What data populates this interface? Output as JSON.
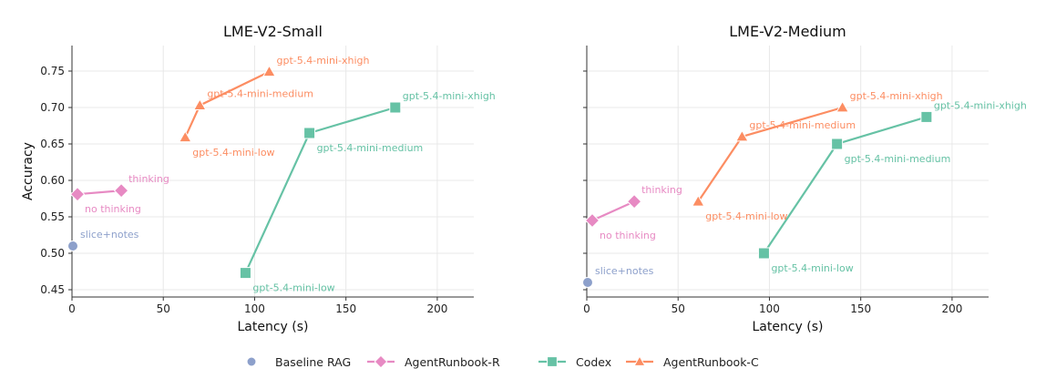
{
  "chart_data": [
    {
      "type": "line",
      "title": "LME-V2-Small",
      "xlabel": "Latency (s)",
      "ylabel": "Accuracy",
      "xlim": [
        0,
        220
      ],
      "ylim": [
        0.44,
        0.785
      ],
      "xticks": [
        0,
        50,
        100,
        150,
        200
      ],
      "yticks": [
        0.45,
        0.5,
        0.55,
        0.6,
        0.65,
        0.7,
        0.75
      ],
      "grid": true,
      "series": [
        {
          "name": "Baseline RAG",
          "color": "#8da0cb",
          "marker": "circle",
          "points": [
            {
              "x": 0.5,
              "y": 0.51,
              "label": "slice+notes",
              "pos": "upper-right"
            }
          ]
        },
        {
          "name": "AgentRunbook-R",
          "color": "#e78ac3",
          "marker": "diamond",
          "points": [
            {
              "x": 3,
              "y": 0.581,
              "label": "no thinking",
              "pos": "lower-right"
            },
            {
              "x": 27,
              "y": 0.586,
              "label": "thinking",
              "pos": "upper-right"
            }
          ]
        },
        {
          "name": "Codex",
          "color": "#66c2a5",
          "marker": "square",
          "points": [
            {
              "x": 95,
              "y": 0.473,
              "label": "gpt-5.4-mini-low",
              "pos": "lower-right"
            },
            {
              "x": 130,
              "y": 0.665,
              "label": "gpt-5.4-mini-medium",
              "pos": "lower-right"
            },
            {
              "x": 177,
              "y": 0.7,
              "label": "gpt-5.4-mini-xhigh",
              "pos": "upper-right"
            }
          ]
        },
        {
          "name": "AgentRunbook-C",
          "color": "#fc8d62",
          "marker": "triangle",
          "points": [
            {
              "x": 62,
              "y": 0.659,
              "label": "gpt-5.4-mini-low",
              "pos": "lower-right"
            },
            {
              "x": 70,
              "y": 0.703,
              "label": "gpt-5.4-mini-medium",
              "pos": "upper-right"
            },
            {
              "x": 108,
              "y": 0.749,
              "label": "gpt-5.4-mini-xhigh",
              "pos": "upper-right"
            }
          ]
        }
      ]
    },
    {
      "type": "line",
      "title": "LME-V2-Medium",
      "xlabel": "Latency (s)",
      "ylabel": "",
      "xlim": [
        0,
        220
      ],
      "ylim": [
        0.44,
        0.785
      ],
      "xticks": [
        0,
        50,
        100,
        150,
        200
      ],
      "yticks": [
        0.45,
        0.5,
        0.55,
        0.6,
        0.65,
        0.7,
        0.75
      ],
      "grid": true,
      "series": [
        {
          "name": "Baseline RAG",
          "color": "#8da0cb",
          "marker": "circle",
          "points": [
            {
              "x": 0.5,
              "y": 0.46,
              "label": "slice+notes",
              "pos": "upper-right"
            }
          ]
        },
        {
          "name": "AgentRunbook-R",
          "color": "#e78ac3",
          "marker": "diamond",
          "points": [
            {
              "x": 3,
              "y": 0.545,
              "label": "no thinking",
              "pos": "lower-right"
            },
            {
              "x": 26,
              "y": 0.571,
              "label": "thinking",
              "pos": "upper-right"
            }
          ]
        },
        {
          "name": "Codex",
          "color": "#66c2a5",
          "marker": "square",
          "points": [
            {
              "x": 97,
              "y": 0.5,
              "label": "gpt-5.4-mini-low",
              "pos": "lower-right"
            },
            {
              "x": 137,
              "y": 0.65,
              "label": "gpt-5.4-mini-medium",
              "pos": "lower-right"
            },
            {
              "x": 186,
              "y": 0.687,
              "label": "gpt-5.4-mini-xhigh",
              "pos": "upper-right"
            }
          ]
        },
        {
          "name": "AgentRunbook-C",
          "color": "#fc8d62",
          "marker": "triangle",
          "points": [
            {
              "x": 61,
              "y": 0.571,
              "label": "gpt-5.4-mini-low",
              "pos": "lower-right"
            },
            {
              "x": 85,
              "y": 0.66,
              "label": "gpt-5.4-mini-medium",
              "pos": "upper-right"
            },
            {
              "x": 140,
              "y": 0.7,
              "label": "gpt-5.4-mini-xhigh",
              "pos": "upper-right"
            }
          ]
        }
      ]
    }
  ],
  "legend": {
    "placement": "bottom-center",
    "entries": [
      {
        "label": "Baseline RAG",
        "color": "#8da0cb",
        "marker": "circle",
        "line": false
      },
      {
        "label": "AgentRunbook-R",
        "color": "#e78ac3",
        "marker": "diamond",
        "line": true
      },
      {
        "label": "Codex",
        "color": "#66c2a5",
        "marker": "square",
        "line": true
      },
      {
        "label": "AgentRunbook-C",
        "color": "#fc8d62",
        "marker": "triangle",
        "line": true
      }
    ]
  }
}
